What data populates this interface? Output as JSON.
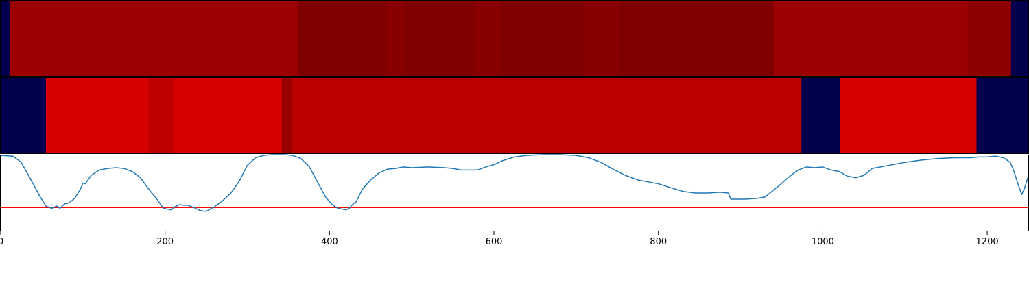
{
  "chart_data": [
    {
      "type": "heatmap",
      "x_range": [
        0,
        1250
      ],
      "segments": [
        {
          "start": 0,
          "end": 11,
          "color": "#00004c"
        },
        {
          "start": 11,
          "end": 361,
          "color": "#9c0000"
        },
        {
          "start": 361,
          "end": 470,
          "color": "#800000"
        },
        {
          "start": 470,
          "end": 490,
          "color": "#8a0000"
        },
        {
          "start": 490,
          "end": 577,
          "color": "#800000"
        },
        {
          "start": 577,
          "end": 606,
          "color": "#8a0000"
        },
        {
          "start": 606,
          "end": 711,
          "color": "#800000"
        },
        {
          "start": 711,
          "end": 751,
          "color": "#8a0000"
        },
        {
          "start": 751,
          "end": 941,
          "color": "#800000"
        },
        {
          "start": 941,
          "end": 1176,
          "color": "#9c0000"
        },
        {
          "start": 1176,
          "end": 1229,
          "color": "#8e0000"
        },
        {
          "start": 1229,
          "end": 1250,
          "color": "#00004c"
        }
      ]
    },
    {
      "type": "heatmap",
      "x_range": [
        0,
        1250
      ],
      "segments": [
        {
          "start": 0,
          "end": 55,
          "color": "#00004c"
        },
        {
          "start": 55,
          "end": 180,
          "color": "#d80000"
        },
        {
          "start": 180,
          "end": 211,
          "color": "#c00000"
        },
        {
          "start": 211,
          "end": 342,
          "color": "#d80000"
        },
        {
          "start": 342,
          "end": 354,
          "color": "#980000"
        },
        {
          "start": 354,
          "end": 974,
          "color": "#bb0000"
        },
        {
          "start": 974,
          "end": 1021,
          "color": "#00004c"
        },
        {
          "start": 1021,
          "end": 1187,
          "color": "#d80000"
        },
        {
          "start": 1187,
          "end": 1250,
          "color": "#00004c"
        }
      ]
    },
    {
      "type": "line",
      "xlim": [
        0,
        1250
      ],
      "ylim": [
        0,
        1
      ],
      "xticks": [
        0,
        200,
        400,
        600,
        800,
        1000,
        1200
      ],
      "grid": false,
      "threshold": {
        "value": 0.31,
        "color": "#ff0000"
      },
      "series": [
        {
          "color": "#1f77b4",
          "points": [
            [
              0,
              0.99
            ],
            [
              15,
              0.98
            ],
            [
              25,
              0.9
            ],
            [
              38,
              0.65
            ],
            [
              48,
              0.45
            ],
            [
              55,
              0.33
            ],
            [
              62,
              0.3
            ],
            [
              68,
              0.33
            ],
            [
              72,
              0.3
            ],
            [
              78,
              0.36
            ],
            [
              83,
              0.37
            ],
            [
              90,
              0.43
            ],
            [
              97,
              0.55
            ],
            [
              100,
              0.63
            ],
            [
              103,
              0.62
            ],
            [
              110,
              0.73
            ],
            [
              120,
              0.8
            ],
            [
              130,
              0.82
            ],
            [
              140,
              0.83
            ],
            [
              150,
              0.82
            ],
            [
              160,
              0.78
            ],
            [
              170,
              0.7
            ],
            [
              180,
              0.55
            ],
            [
              190,
              0.42
            ],
            [
              198,
              0.3
            ],
            [
              207,
              0.28
            ],
            [
              212,
              0.32
            ],
            [
              218,
              0.35
            ],
            [
              222,
              0.34
            ],
            [
              228,
              0.34
            ],
            [
              235,
              0.31
            ],
            [
              243,
              0.27
            ],
            [
              250,
              0.26
            ],
            [
              260,
              0.32
            ],
            [
              270,
              0.4
            ],
            [
              280,
              0.5
            ],
            [
              290,
              0.65
            ],
            [
              300,
              0.86
            ],
            [
              310,
              0.96
            ],
            [
              320,
              0.99
            ],
            [
              330,
              1.0
            ],
            [
              345,
              1.0
            ],
            [
              355,
              0.99
            ],
            [
              365,
              0.95
            ],
            [
              375,
              0.85
            ],
            [
              385,
              0.65
            ],
            [
              395,
              0.45
            ],
            [
              403,
              0.35
            ],
            [
              410,
              0.3
            ],
            [
              420,
              0.28
            ],
            [
              424,
              0.3
            ],
            [
              428,
              0.35
            ],
            [
              432,
              0.38
            ],
            [
              440,
              0.55
            ],
            [
              450,
              0.67
            ],
            [
              460,
              0.76
            ],
            [
              470,
              0.81
            ],
            [
              480,
              0.82
            ],
            [
              490,
              0.84
            ],
            [
              500,
              0.83
            ],
            [
              520,
              0.84
            ],
            [
              540,
              0.83
            ],
            [
              550,
              0.82
            ],
            [
              560,
              0.8
            ],
            [
              570,
              0.8
            ],
            [
              580,
              0.8
            ],
            [
              590,
              0.84
            ],
            [
              600,
              0.87
            ],
            [
              610,
              0.92
            ],
            [
              625,
              0.97
            ],
            [
              640,
              0.99
            ],
            [
              660,
              1.0
            ],
            [
              680,
              1.0
            ],
            [
              700,
              0.99
            ],
            [
              715,
              0.96
            ],
            [
              730,
              0.9
            ],
            [
              745,
              0.81
            ],
            [
              760,
              0.73
            ],
            [
              775,
              0.67
            ],
            [
              790,
              0.64
            ],
            [
              800,
              0.62
            ],
            [
              815,
              0.57
            ],
            [
              830,
              0.52
            ],
            [
              845,
              0.5
            ],
            [
              860,
              0.5
            ],
            [
              875,
              0.51
            ],
            [
              885,
              0.5
            ],
            [
              888,
              0.42
            ],
            [
              905,
              0.42
            ],
            [
              920,
              0.43
            ],
            [
              930,
              0.45
            ],
            [
              945,
              0.58
            ],
            [
              960,
              0.72
            ],
            [
              970,
              0.8
            ],
            [
              980,
              0.84
            ],
            [
              990,
              0.83
            ],
            [
              1000,
              0.84
            ],
            [
              1010,
              0.8
            ],
            [
              1020,
              0.78
            ],
            [
              1030,
              0.72
            ],
            [
              1040,
              0.7
            ],
            [
              1050,
              0.73
            ],
            [
              1060,
              0.82
            ],
            [
              1080,
              0.86
            ],
            [
              1100,
              0.9
            ],
            [
              1120,
              0.93
            ],
            [
              1140,
              0.95
            ],
            [
              1160,
              0.96
            ],
            [
              1180,
              0.96
            ],
            [
              1190,
              0.97
            ],
            [
              1200,
              0.97
            ],
            [
              1210,
              0.98
            ],
            [
              1220,
              0.96
            ],
            [
              1228,
              0.9
            ],
            [
              1232,
              0.8
            ],
            [
              1238,
              0.6
            ],
            [
              1242,
              0.48
            ],
            [
              1245,
              0.55
            ],
            [
              1248,
              0.65
            ],
            [
              1250,
              0.72
            ]
          ]
        }
      ]
    }
  ]
}
